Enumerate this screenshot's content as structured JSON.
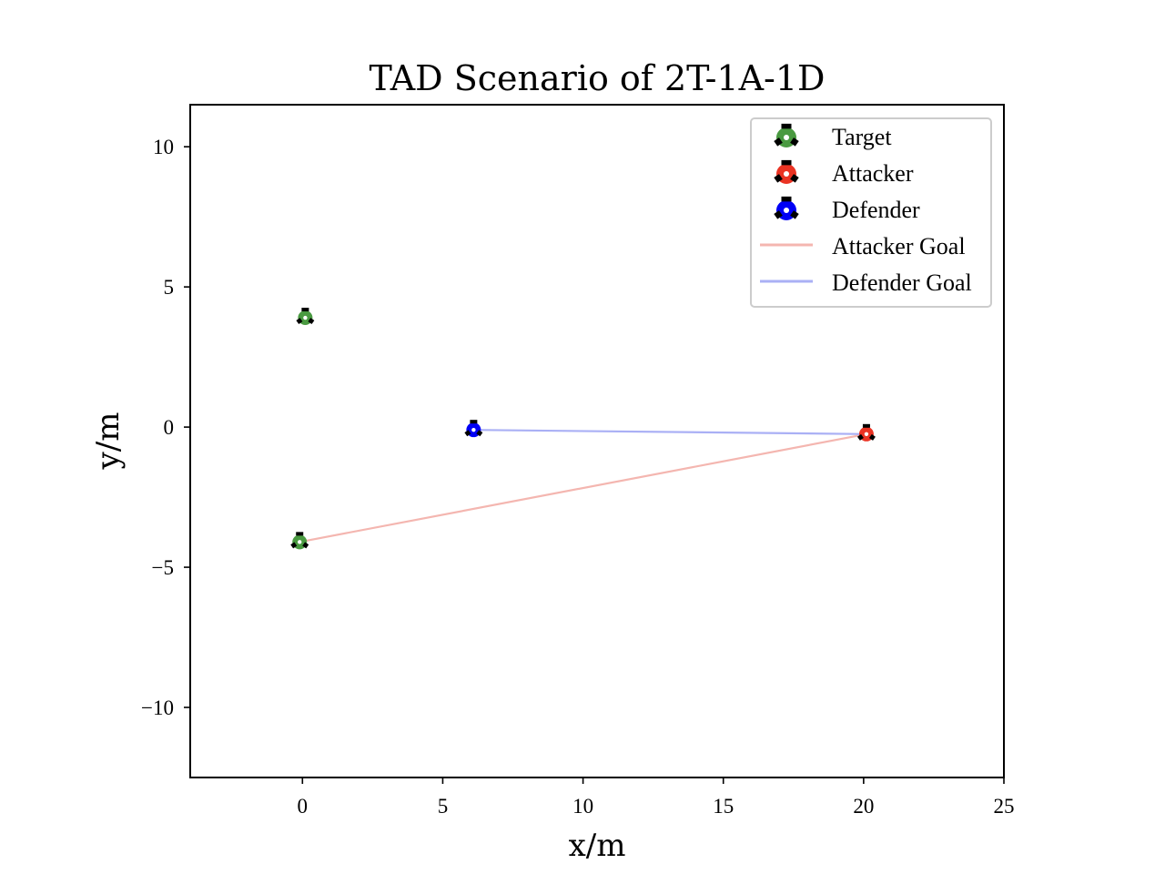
{
  "chart_data": {
    "type": "scatter",
    "title": "TAD Scenario of 2T-1A-1D",
    "xlabel": "x/m",
    "ylabel": "y/m",
    "xlim": [
      -4,
      25
    ],
    "ylim": [
      -12.5,
      11.5
    ],
    "xticks": [
      0,
      5,
      10,
      15,
      20,
      25
    ],
    "xtick_labels": [
      "0",
      "5",
      "10",
      "15",
      "20",
      "25"
    ],
    "yticks": [
      10,
      5,
      0,
      -5,
      -10
    ],
    "ytick_labels": [
      "10",
      "5",
      "0",
      "−5",
      "−10"
    ],
    "grid": false,
    "legend_position": "top-right",
    "series": [
      {
        "name": "Target",
        "kind": "marker",
        "color": "#4a9a41",
        "points": [
          [
            0.1,
            3.9
          ],
          [
            -0.1,
            -4.1
          ]
        ]
      },
      {
        "name": "Attacker",
        "kind": "marker",
        "color": "#ea3323",
        "points": [
          [
            20.1,
            -0.25
          ]
        ]
      },
      {
        "name": "Defender",
        "kind": "marker",
        "color": "#0000f5",
        "points": [
          [
            6.1,
            -0.1
          ]
        ]
      },
      {
        "name": "Attacker Goal",
        "kind": "line",
        "color": "#f4b6b0",
        "points": [
          [
            -0.1,
            -4.1
          ],
          [
            20.1,
            -0.25
          ]
        ]
      },
      {
        "name": "Defender Goal",
        "kind": "line",
        "color": "#aab0f5",
        "points": [
          [
            6.1,
            -0.1
          ],
          [
            20.1,
            -0.25
          ]
        ]
      }
    ]
  }
}
